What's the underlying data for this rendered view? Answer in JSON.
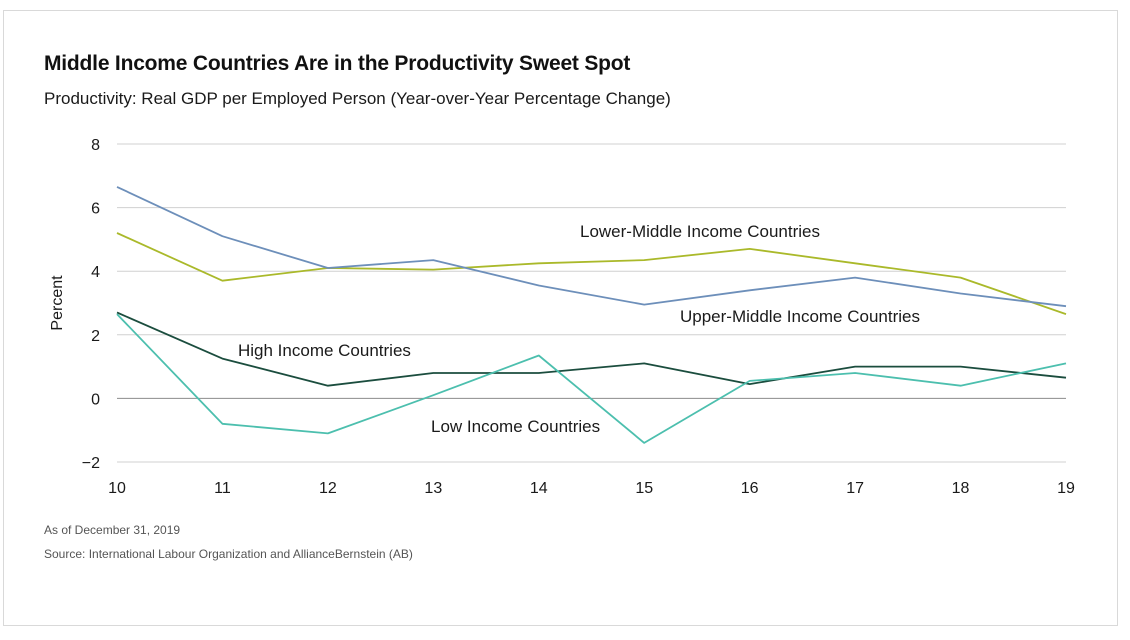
{
  "header": {
    "title": "Middle Income Countries Are in the Productivity Sweet Spot",
    "subtitle": "Productivity: Real GDP per Employed Person (Year-over-Year Percentage Change)"
  },
  "footer": {
    "as_of": "As of December 31, 2019",
    "source": "Source: International Labour Organization and AllianceBernstein (AB)"
  },
  "chart_data": {
    "type": "line",
    "title": "Middle Income Countries Are in the Productivity Sweet Spot",
    "subtitle": "Productivity: Real GDP per Employed Person (Year-over-Year Percentage Change)",
    "xlabel": "",
    "ylabel": "Percent",
    "x": [
      "10",
      "11",
      "12",
      "13",
      "14",
      "15",
      "16",
      "17",
      "18",
      "19"
    ],
    "ylim": [
      -2,
      8
    ],
    "yticks": [
      -2,
      0,
      2,
      4,
      6,
      8
    ],
    "yticklabels": [
      "−2",
      "0",
      "2",
      "4",
      "6",
      "8"
    ],
    "grid": true,
    "legend": "none (series labelled directly on chart)",
    "series": [
      {
        "name": "Lower-Middle Income Countries",
        "color": "#aab92a",
        "values": [
          5.2,
          3.7,
          4.1,
          4.05,
          4.25,
          4.35,
          4.7,
          4.25,
          3.8,
          2.65
        ]
      },
      {
        "name": "Upper-Middle Income Countries",
        "color": "#6d8fba",
        "values": [
          6.65,
          5.1,
          4.1,
          4.35,
          3.55,
          2.95,
          3.4,
          3.8,
          3.3,
          2.9
        ]
      },
      {
        "name": "High Income Countries",
        "color": "#1b4d3e",
        "values": [
          2.7,
          1.25,
          0.4,
          0.8,
          0.8,
          1.1,
          0.45,
          1.0,
          1.0,
          0.65
        ]
      },
      {
        "name": "Low Income Countries",
        "color": "#4cbfae",
        "values": [
          2.65,
          -0.8,
          -1.1,
          0.1,
          1.35,
          -1.4,
          0.55,
          0.8,
          0.4,
          1.1
        ]
      }
    ]
  }
}
